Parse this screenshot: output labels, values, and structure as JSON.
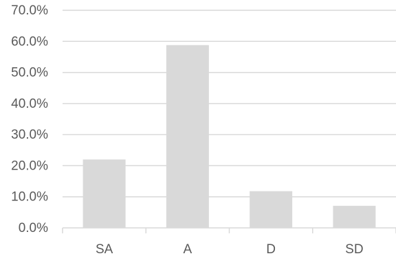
{
  "chart_data": {
    "type": "bar",
    "title": "",
    "xlabel": "",
    "ylabel": "",
    "categories": [
      "SA",
      "A",
      "D",
      "SD"
    ],
    "values": [
      22.0,
      58.8,
      11.8,
      7.1
    ],
    "ylim": [
      0,
      70
    ],
    "yticks": [
      0,
      10,
      20,
      30,
      40,
      50,
      60,
      70
    ],
    "ytick_labels": [
      "0.0%",
      "10.0%",
      "20.0%",
      "30.0%",
      "40.0%",
      "50.0%",
      "60.0%",
      "70.0%"
    ],
    "grid": true,
    "legend": "none",
    "bar_color": "#d9d9d9",
    "grid_color": "#d9d9d9",
    "text_color": "#595959"
  }
}
